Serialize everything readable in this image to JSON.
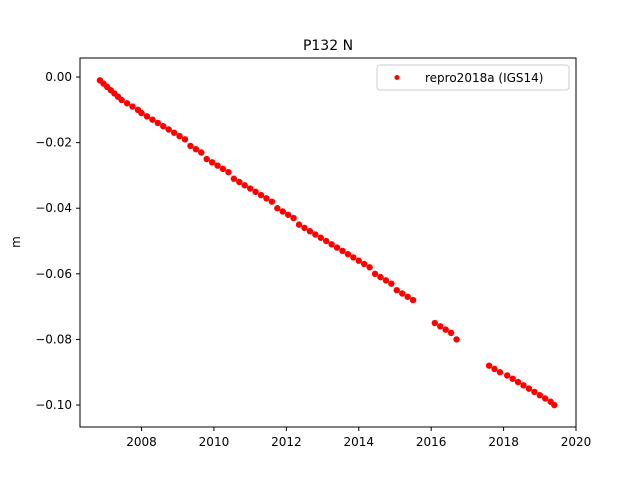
{
  "chart_data": {
    "type": "scatter",
    "title": "P132 N",
    "xlabel": "",
    "ylabel": "m",
    "xlim": [
      2006.3,
      2020.0
    ],
    "ylim": [
      -0.1067,
      0.0058
    ],
    "xticks": [
      2008,
      2010,
      2012,
      2014,
      2016,
      2018,
      2020
    ],
    "xtick_labels": [
      "2008",
      "2010",
      "2012",
      "2014",
      "2016",
      "2018",
      "2020"
    ],
    "yticks": [
      0.0,
      -0.02,
      -0.04,
      -0.06,
      -0.08,
      -0.1
    ],
    "ytick_labels": [
      "0.00",
      "−0.02",
      "−0.04",
      "−0.06",
      "−0.08",
      "−0.10"
    ],
    "grid": false,
    "legend_position": "top-right",
    "series": [
      {
        "name": "repro2018a (IGS14)",
        "color": "#ff0000",
        "marker": "circle",
        "x": [
          2006.85,
          2006.95,
          2007.05,
          2007.15,
          2007.25,
          2007.35,
          2007.45,
          2007.6,
          2007.75,
          2007.9,
          2008.0,
          2008.15,
          2008.3,
          2008.45,
          2008.6,
          2008.75,
          2008.9,
          2009.05,
          2009.2,
          2009.35,
          2009.5,
          2009.65,
          2009.8,
          2009.95,
          2010.1,
          2010.25,
          2010.4,
          2010.55,
          2010.7,
          2010.85,
          2011.0,
          2011.15,
          2011.3,
          2011.45,
          2011.6,
          2011.75,
          2011.9,
          2012.05,
          2012.2,
          2012.35,
          2012.5,
          2012.65,
          2012.8,
          2012.95,
          2013.1,
          2013.25,
          2013.4,
          2013.55,
          2013.7,
          2013.85,
          2014.0,
          2014.15,
          2014.3,
          2014.45,
          2014.6,
          2014.75,
          2014.9,
          2015.05,
          2015.2,
          2015.35,
          2015.5,
          2016.1,
          2016.25,
          2016.4,
          2016.55,
          2016.7,
          2017.6,
          2017.75,
          2017.9,
          2018.1,
          2018.25,
          2018.4,
          2018.55,
          2018.7,
          2018.85,
          2019.0,
          2019.15,
          2019.3,
          2019.4
        ],
        "y": [
          -0.001,
          -0.002,
          -0.003,
          -0.004,
          -0.005,
          -0.006,
          -0.007,
          -0.008,
          -0.009,
          -0.01,
          -0.011,
          -0.012,
          -0.013,
          -0.014,
          -0.015,
          -0.016,
          -0.017,
          -0.018,
          -0.019,
          -0.021,
          -0.022,
          -0.023,
          -0.025,
          -0.026,
          -0.027,
          -0.028,
          -0.029,
          -0.031,
          -0.032,
          -0.033,
          -0.034,
          -0.035,
          -0.036,
          -0.037,
          -0.038,
          -0.04,
          -0.041,
          -0.042,
          -0.043,
          -0.045,
          -0.046,
          -0.047,
          -0.048,
          -0.049,
          -0.05,
          -0.051,
          -0.052,
          -0.053,
          -0.054,
          -0.055,
          -0.056,
          -0.057,
          -0.058,
          -0.06,
          -0.061,
          -0.062,
          -0.063,
          -0.065,
          -0.066,
          -0.067,
          -0.068,
          -0.075,
          -0.076,
          -0.077,
          -0.078,
          -0.08,
          -0.088,
          -0.089,
          -0.09,
          -0.091,
          -0.092,
          -0.093,
          -0.094,
          -0.095,
          -0.096,
          -0.097,
          -0.098,
          -0.099,
          -0.1
        ]
      }
    ]
  }
}
